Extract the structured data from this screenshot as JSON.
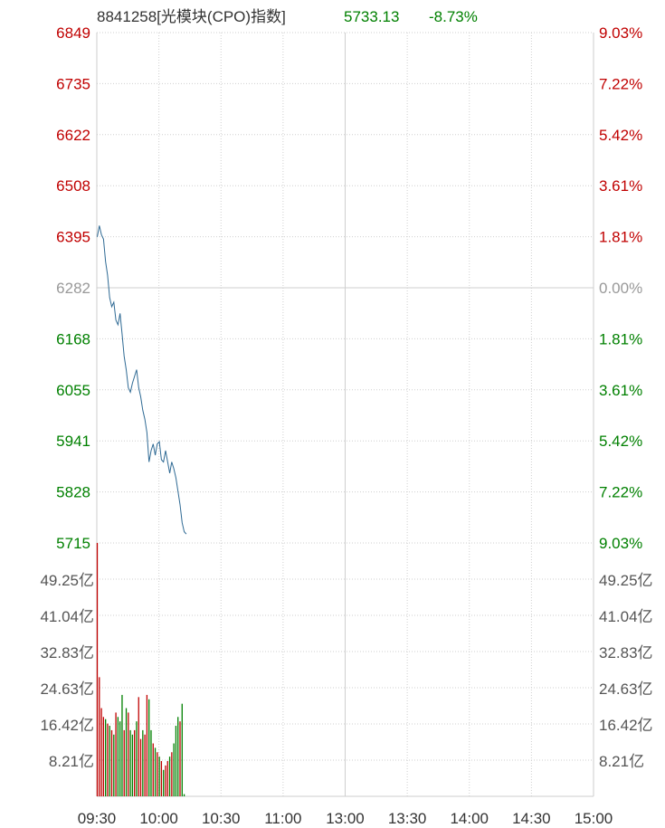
{
  "header": {
    "code_name": "8841258[光模块(CPO)指数]",
    "price": "5733.13",
    "change_pct": "-8.73%"
  },
  "colors": {
    "up": "#c00000",
    "down": "#008000",
    "neutral": "#999999",
    "line": "#2f6a94",
    "grid": "#cfcfcf"
  },
  "chart_data": {
    "type": "line",
    "title": "8841258[光模块(CPO)指数]",
    "prev_close": 6282,
    "price_ylim": [
      5715,
      6849
    ],
    "price_ticks": [
      "6849",
      "6735",
      "6622",
      "6508",
      "6395",
      "6282",
      "6168",
      "6055",
      "5941",
      "5828",
      "5715"
    ],
    "pct_ticks": [
      "9.03%",
      "7.22%",
      "5.42%",
      "3.61%",
      "1.81%",
      "0.00%",
      "1.81%",
      "3.61%",
      "5.42%",
      "7.22%",
      "9.03%"
    ],
    "volume_ticks": [
      "49.25亿",
      "41.04亿",
      "32.83亿",
      "24.63亿",
      "16.42亿",
      "8.21亿"
    ],
    "volume_tick_values": [
      49.25,
      41.04,
      32.83,
      24.63,
      16.42,
      8.21
    ],
    "volume_ylim": [
      0,
      57.46
    ],
    "time_labels": [
      "09:30",
      "10:00",
      "10:30",
      "11:00",
      "13:00",
      "13:30",
      "14:00",
      "14:30",
      "15:00"
    ],
    "total_minutes": 240,
    "price_series": {
      "x": [
        0,
        1,
        2,
        3,
        4,
        5,
        6,
        7,
        8,
        9,
        10,
        11,
        12,
        13,
        14,
        15,
        16,
        17,
        18,
        19,
        20,
        21,
        22,
        23,
        24,
        25,
        26,
        27,
        28,
        29,
        30,
        31,
        32,
        33,
        34,
        35,
        36,
        37,
        38,
        39,
        40,
        41,
        42,
        43
      ],
      "y": [
        6395,
        6420,
        6400,
        6390,
        6340,
        6310,
        6260,
        6240,
        6250,
        6210,
        6200,
        6225,
        6180,
        6130,
        6100,
        6060,
        6050,
        6070,
        6085,
        6100,
        6060,
        6040,
        6010,
        5990,
        5960,
        5895,
        5920,
        5935,
        5910,
        5935,
        5940,
        5900,
        5895,
        5920,
        5895,
        5870,
        5895,
        5880,
        5860,
        5830,
        5800,
        5760,
        5740,
        5735
      ]
    },
    "volume_series": {
      "values": [
        57.46,
        27,
        20,
        18,
        17.5,
        16.5,
        16,
        15,
        14,
        19,
        18,
        17,
        23,
        15,
        20,
        19,
        15,
        14,
        15,
        17,
        22.5,
        13,
        15,
        14,
        23,
        22,
        15,
        12,
        11,
        10,
        9,
        8,
        6,
        7,
        8,
        9,
        10,
        12,
        16,
        18,
        17,
        21,
        0.5
      ],
      "colors": [
        "r",
        "r",
        "r",
        "r",
        "g",
        "r",
        "g",
        "r",
        "g",
        "r",
        "g",
        "g",
        "g",
        "r",
        "g",
        "r",
        "g",
        "g",
        "r",
        "g",
        "r",
        "r",
        "g",
        "r",
        "r",
        "g",
        "g",
        "r",
        "g",
        "r",
        "g",
        "r",
        "g",
        "r",
        "r",
        "g",
        "r",
        "g",
        "g",
        "g",
        "r",
        "g",
        "g"
      ]
    }
  }
}
